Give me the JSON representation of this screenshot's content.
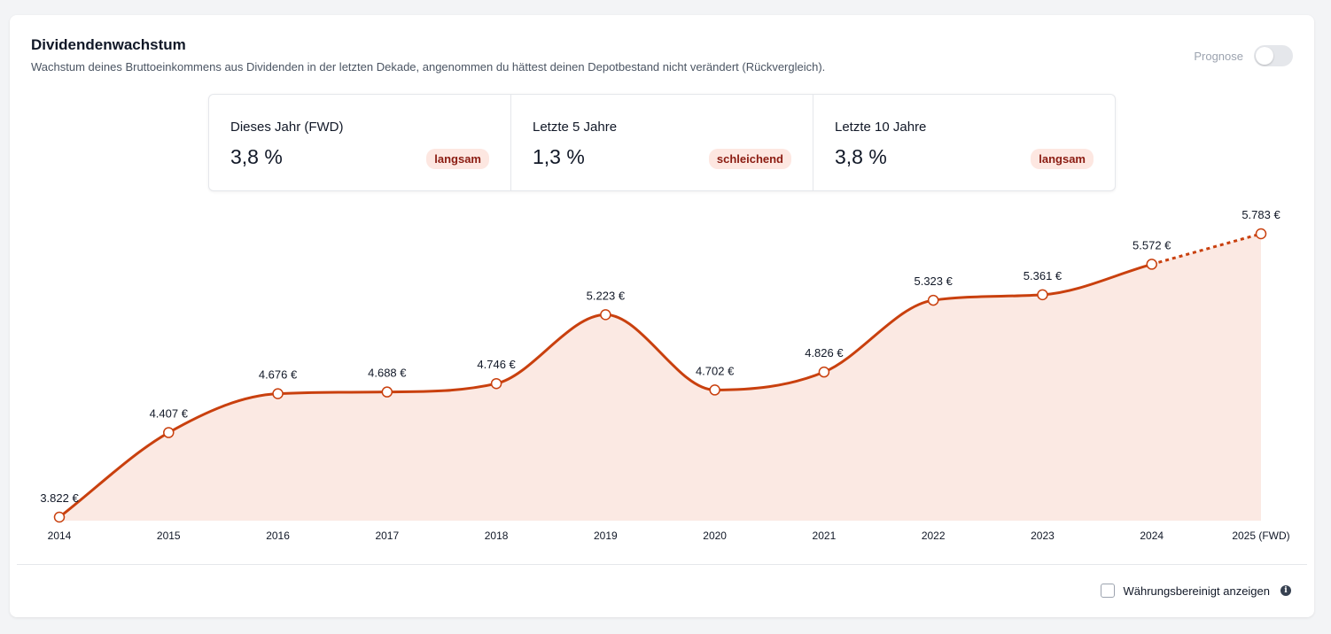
{
  "header": {
    "title": "Dividendenwachstum",
    "subtitle": "Wachstum deines Bruttoeinkommens aus Dividenden in der letzten Dekade, angenommen du hättest deinen Depotbestand nicht verändert (Rückvergleich).",
    "toggle_label": "Prognose",
    "toggle_on": false
  },
  "stats": [
    {
      "label": "Dieses Jahr (FWD)",
      "value": "3,8 %",
      "badge": "langsam"
    },
    {
      "label": "Letzte 5 Jahre",
      "value": "1,3 %",
      "badge": "schleichend"
    },
    {
      "label": "Letzte 10 Jahre",
      "value": "3,8 %",
      "badge": "langsam"
    }
  ],
  "footer": {
    "checkbox_label": "Währungsbereinigt anzeigen",
    "checked": false
  },
  "colors": {
    "line": "#c9400e",
    "area": "#fbe9e3",
    "badge_bg": "#fde7e1",
    "badge_text": "#8b1c12"
  },
  "chart_data": {
    "type": "area",
    "categories": [
      "2014",
      "2015",
      "2016",
      "2017",
      "2018",
      "2019",
      "2020",
      "2021",
      "2022",
      "2023",
      "2024",
      "2025 (FWD)"
    ],
    "values": [
      3822,
      4407,
      4676,
      4688,
      4746,
      5223,
      4702,
      4826,
      5323,
      5361,
      5572,
      5783
    ],
    "data_labels": [
      "3.822 €",
      "4.407 €",
      "4.676 €",
      "4.688 €",
      "4.746 €",
      "5.223 €",
      "4.702 €",
      "4.826 €",
      "5.323 €",
      "5.361 €",
      "5.572 €",
      "5.783 €"
    ],
    "forecast_from_index": 10,
    "unit": "€",
    "ylim": [
      3822,
      5783
    ],
    "grid": false,
    "legend": "none",
    "title": "",
    "xlabel": "",
    "ylabel": ""
  }
}
